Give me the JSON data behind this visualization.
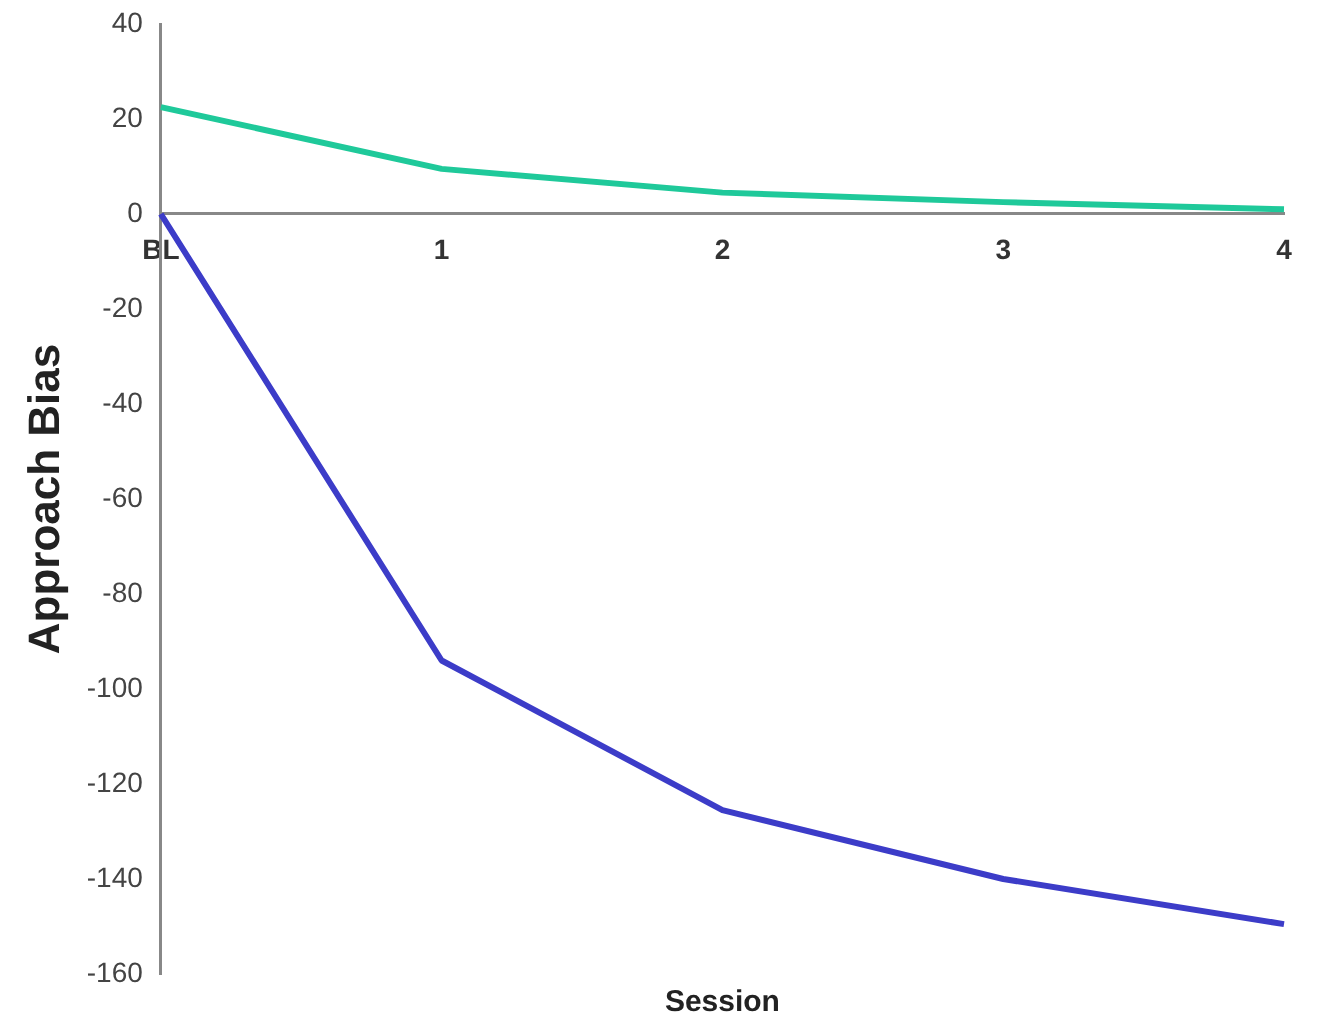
{
  "chart_data": {
    "type": "line",
    "xlabel": "Session",
    "ylabel": "Approach Bias",
    "categories": [
      "BL",
      "1",
      "2",
      "3",
      "4"
    ],
    "series": [
      {
        "color": "#1fc99a",
        "values": [
          22.5,
          9.5,
          4.5,
          2.5,
          1
        ]
      },
      {
        "color": "#3c3cc8",
        "values": [
          0,
          -94,
          -125.5,
          -140,
          -149.5
        ]
      }
    ],
    "ylim": [
      -160,
      40
    ],
    "yticks": [
      -160,
      -140,
      -120,
      -100,
      -80,
      -60,
      -40,
      -20,
      0,
      20,
      40
    ],
    "grid": false,
    "legend": false,
    "marker": "none",
    "line_style": "solid"
  }
}
